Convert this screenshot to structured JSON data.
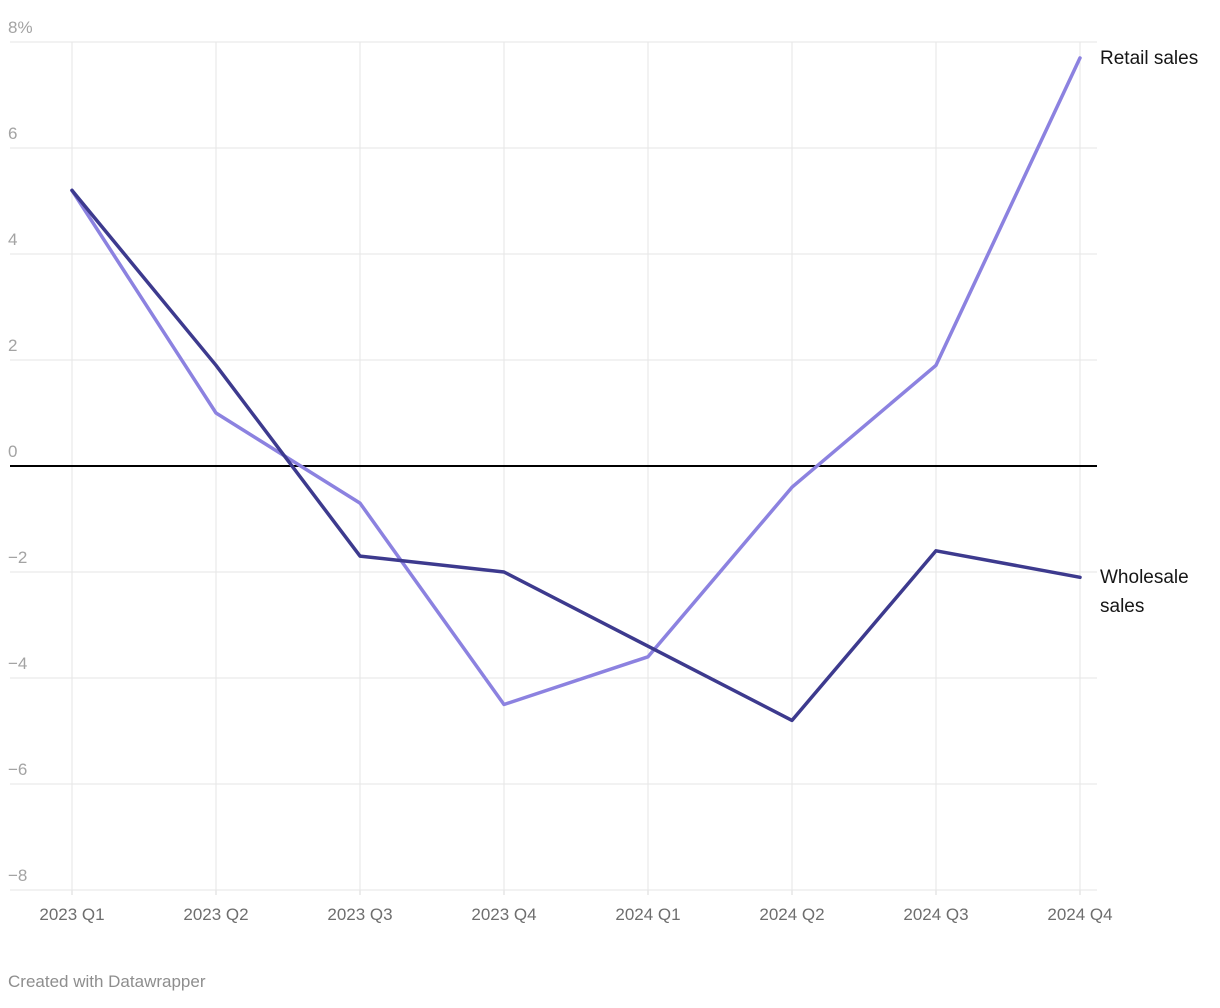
{
  "chart_data": {
    "type": "line",
    "title": "",
    "xlabel": "",
    "ylabel": "",
    "unit": "%",
    "categories": [
      "2023 Q1",
      "2023 Q2",
      "2023 Q3",
      "2023 Q4",
      "2024 Q1",
      "2024 Q2",
      "2024 Q3",
      "2024 Q4"
    ],
    "series": [
      {
        "name": "Retail sales",
        "color": "#8c82e0",
        "values": [
          5.2,
          1.0,
          -0.7,
          -4.5,
          -3.6,
          -0.4,
          1.9,
          7.7
        ]
      },
      {
        "name": "Wholesale sales",
        "color": "#3d3a8e",
        "values": [
          5.2,
          1.9,
          -1.7,
          -2.0,
          -3.4,
          -4.8,
          -1.6,
          -2.1
        ]
      }
    ],
    "y_ticks": [
      {
        "value": 8,
        "label": "8%"
      },
      {
        "value": 6,
        "label": "6"
      },
      {
        "value": 4,
        "label": "4"
      },
      {
        "value": 2,
        "label": "2"
      },
      {
        "value": 0,
        "label": "0"
      },
      {
        "value": -2,
        "label": "−2"
      },
      {
        "value": -4,
        "label": "−4"
      },
      {
        "value": -6,
        "label": "−6"
      },
      {
        "value": -8,
        "label": "−8"
      }
    ],
    "ylim": [
      -8,
      8
    ],
    "baseline": 0,
    "grid": true,
    "legend_position": "direct-labels-right"
  },
  "footer": {
    "credit": "Created with Datawrapper"
  },
  "colors": {
    "retail_line": "#8c82e0",
    "wholesale_line": "#3d3a8e",
    "zero_line": "#000000",
    "grid_line": "#e6e6e6",
    "y_tick_text": "#a3a3a3",
    "x_tick_text": "#6e6e6e",
    "label_text": "#161616",
    "credit_text": "#8e8e8e"
  }
}
